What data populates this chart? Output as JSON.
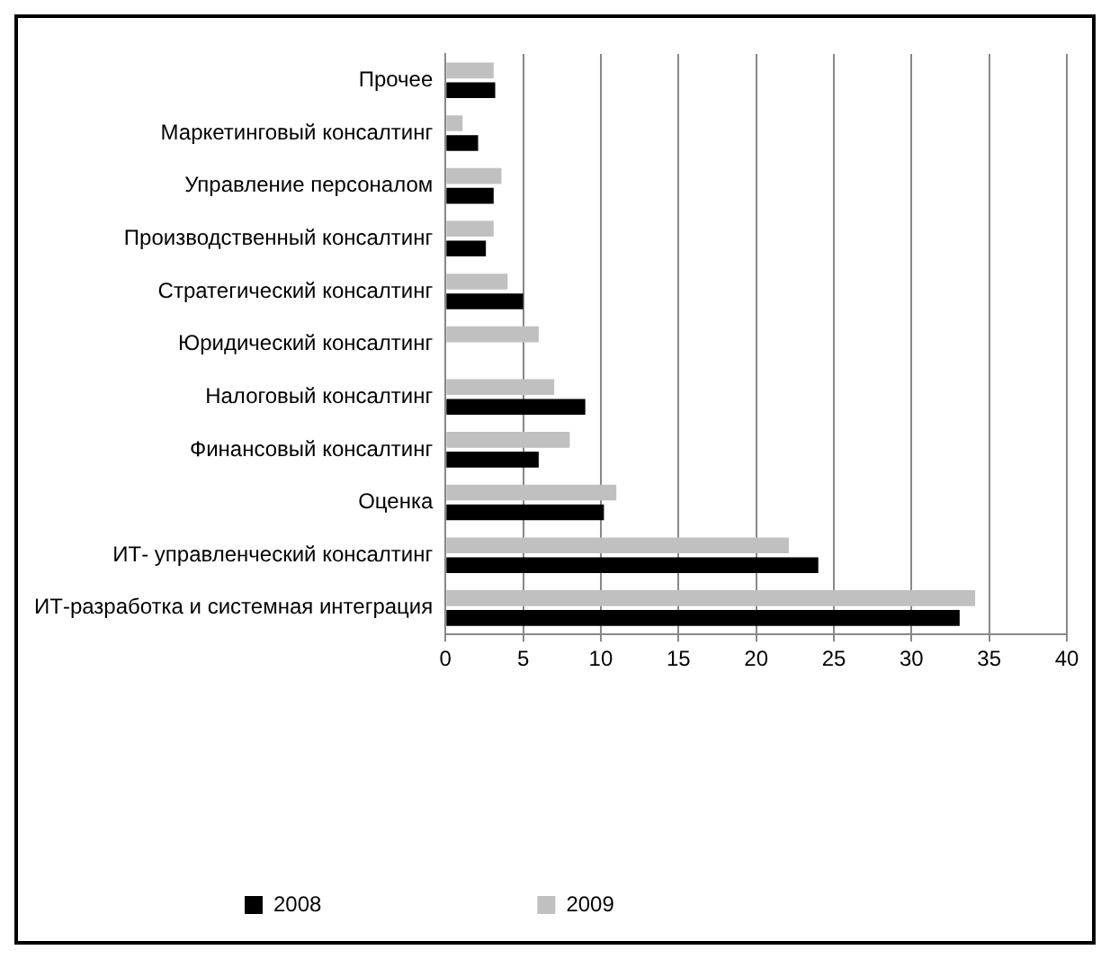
{
  "chart_data": {
    "type": "bar",
    "orientation": "horizontal",
    "categories": [
      "Прочее",
      "Маркетинговый консалтинг",
      "Управление персоналом",
      "Производственный консалтинг",
      "Стратегический консалтинг",
      "Юридический консалтинг",
      "Налоговый консалтинг",
      "Финансовый консалтинг",
      "Оценка",
      "ИТ- управленческий консалтинг",
      "ИТ-разработка и системная интеграция"
    ],
    "series": [
      {
        "name": "2008",
        "color": "#000000",
        "values": [
          3.2,
          2.1,
          3.1,
          2.6,
          5,
          null,
          9,
          6,
          10.2,
          24,
          33.1
        ]
      },
      {
        "name": "2009",
        "color": "#c0c0c0",
        "values": [
          3.1,
          1.1,
          3.6,
          3.1,
          4,
          6,
          7,
          8,
          11,
          22.1,
          34.1
        ]
      }
    ],
    "xlim": [
      0,
      40
    ],
    "xticks": [
      0,
      5,
      10,
      15,
      20,
      25,
      30,
      35,
      40
    ],
    "grid": "x",
    "legend": "bottom"
  }
}
